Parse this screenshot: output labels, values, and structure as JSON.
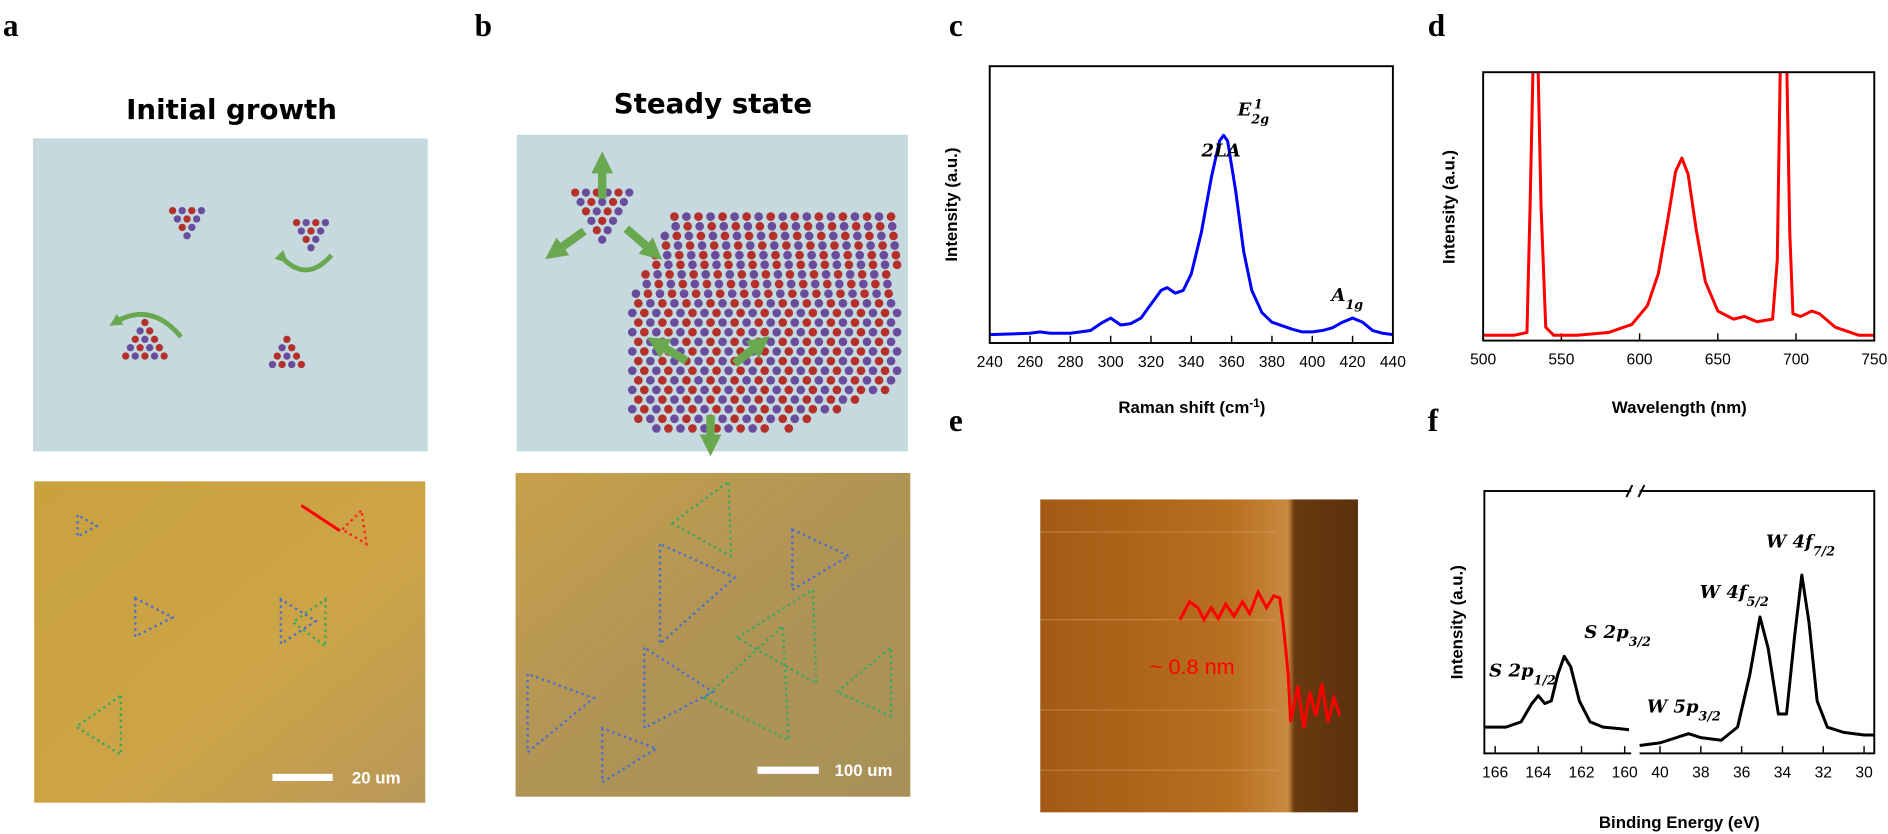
{
  "panel_labels": [
    "a",
    "b",
    "c",
    "d",
    "e",
    "f"
  ],
  "panel_a": {
    "title": "Initial growth",
    "scale_bar": "20 um"
  },
  "panel_b": {
    "title": "Steady state",
    "scale_bar": "100 um"
  },
  "panel_e": {
    "annotation": "~ 0.8 nm"
  },
  "chart_data": [
    {
      "type": "line",
      "x_label": {
        "text": "Raman shift (cm",
        "sup": "-1",
        "tail": ")"
      },
      "y_label": "Intensity (a.u.)",
      "xlim": [
        240,
        440
      ],
      "xticks": [
        240,
        260,
        280,
        300,
        320,
        340,
        360,
        380,
        400,
        420,
        440
      ],
      "ylim": [
        0,
        1
      ],
      "series": [
        {
          "color": "#0000ff",
          "x": [
            240,
            260,
            265,
            270,
            280,
            290,
            295,
            300,
            305,
            310,
            315,
            320,
            325,
            328,
            332,
            336,
            340,
            345,
            350,
            354,
            356,
            358,
            362,
            366,
            370,
            375,
            380,
            390,
            395,
            400,
            405,
            410,
            415,
            420,
            425,
            430,
            435,
            440
          ],
          "values": [
            0.03,
            0.035,
            0.04,
            0.035,
            0.035,
            0.045,
            0.07,
            0.09,
            0.065,
            0.07,
            0.09,
            0.14,
            0.19,
            0.2,
            0.18,
            0.19,
            0.25,
            0.4,
            0.6,
            0.73,
            0.75,
            0.73,
            0.55,
            0.33,
            0.19,
            0.11,
            0.075,
            0.05,
            0.04,
            0.04,
            0.045,
            0.055,
            0.075,
            0.09,
            0.075,
            0.045,
            0.035,
            0.03
          ]
        }
      ],
      "annotations": [
        {
          "text": "2LA"
        },
        {
          "text": "E",
          "sub": "2g",
          "sup": "1"
        },
        {
          "text": "A",
          "sub": "1g"
        }
      ]
    },
    {
      "type": "line",
      "x_label": "Wavelength (nm)",
      "y_label": "Intensity (a.u.)",
      "xlim": [
        500,
        750
      ],
      "xticks": [
        500,
        550,
        600,
        650,
        700,
        750
      ],
      "ylim": [
        0,
        1
      ],
      "series": [
        {
          "color": "#ff0000",
          "x": [
            500,
            520,
            528,
            530,
            532,
            535,
            537,
            540,
            545,
            560,
            580,
            595,
            605,
            612,
            618,
            623,
            627,
            631,
            636,
            642,
            650,
            660,
            667,
            675,
            685,
            688,
            690,
            694,
            696,
            698,
            703,
            710,
            715,
            725,
            740,
            750
          ],
          "values": [
            0.02,
            0.02,
            0.03,
            0.5,
            1.05,
            1.05,
            0.5,
            0.05,
            0.02,
            0.02,
            0.03,
            0.06,
            0.13,
            0.25,
            0.45,
            0.63,
            0.68,
            0.62,
            0.42,
            0.22,
            0.11,
            0.08,
            0.09,
            0.07,
            0.08,
            0.3,
            1.05,
            1.05,
            0.4,
            0.1,
            0.09,
            0.11,
            0.1,
            0.05,
            0.02,
            0.02
          ]
        }
      ]
    },
    {
      "type": "line",
      "x_label": "Binding Energy (eV)",
      "y_label": "Intensity (a.u.)",
      "ylim": [
        0,
        1
      ],
      "segments": [
        {
          "xlim": [
            166.5,
            159.7
          ],
          "xticks": [
            166,
            164,
            162,
            160
          ],
          "series": [
            {
              "color": "#000000",
              "x": [
                166.5,
                165.5,
                164.8,
                164.3,
                164,
                163.7,
                163.4,
                163.1,
                162.8,
                162.5,
                162.1,
                161.6,
                161,
                160.3,
                159.8
              ],
              "values": [
                0.1,
                0.1,
                0.12,
                0.19,
                0.22,
                0.19,
                0.2,
                0.3,
                0.37,
                0.33,
                0.2,
                0.12,
                0.1,
                0.095,
                0.09
              ]
            }
          ]
        },
        {
          "xlim": [
            41,
            29.5
          ],
          "xticks": [
            40,
            38,
            36,
            34,
            32,
            30
          ],
          "series": [
            {
              "color": "#000000",
              "x": [
                41,
                40,
                39.2,
                38.6,
                38,
                37,
                36.2,
                35.6,
                35.1,
                34.7,
                34.2,
                33.8,
                33.4,
                33.05,
                32.7,
                32.3,
                31.8,
                31,
                30,
                29.5
              ],
              "values": [
                0.03,
                0.04,
                0.06,
                0.075,
                0.06,
                0.05,
                0.1,
                0.3,
                0.52,
                0.4,
                0.15,
                0.15,
                0.45,
                0.68,
                0.5,
                0.2,
                0.1,
                0.08,
                0.07,
                0.07
              ]
            }
          ]
        }
      ],
      "annotations": [
        {
          "text": "S 2p",
          "sub": "1/2"
        },
        {
          "text": "S 2p",
          "sub": "3/2"
        },
        {
          "text": "W 5p",
          "sub": "3/2"
        },
        {
          "text": "W 4f",
          "sub": "5/2"
        },
        {
          "text": "W 4f",
          "sub": "7/2"
        }
      ]
    }
  ]
}
